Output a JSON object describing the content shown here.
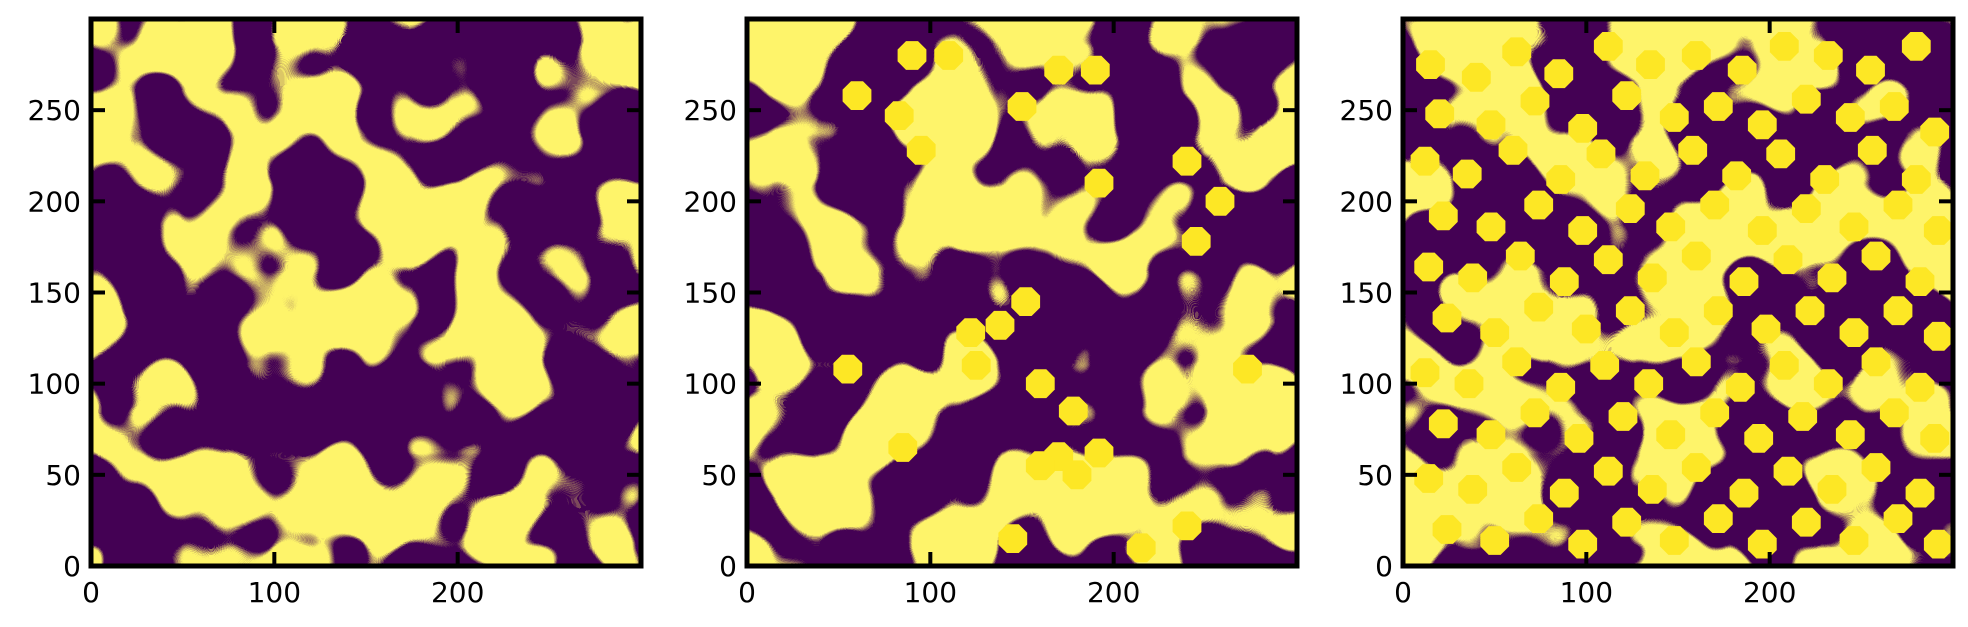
{
  "chart_data": [
    {
      "type": "heatmap",
      "xlim": [
        0,
        300
      ],
      "ylim": [
        0,
        300
      ],
      "x_ticks": [
        0,
        100,
        200
      ],
      "y_ticks": [
        0,
        50,
        100,
        150,
        200,
        250
      ],
      "grid": false,
      "colormap": [
        "#440154",
        "#FDE725"
      ],
      "circles": []
    },
    {
      "type": "heatmap",
      "xlim": [
        0,
        300
      ],
      "ylim": [
        0,
        300
      ],
      "x_ticks": [
        0,
        100,
        200
      ],
      "y_ticks": [
        0,
        50,
        100,
        150,
        200,
        250
      ],
      "grid": false,
      "colormap": [
        "#440154",
        "#FDE725"
      ],
      "circles": [
        [
          90,
          280
        ],
        [
          60,
          258
        ],
        [
          83,
          247
        ],
        [
          95,
          228
        ],
        [
          110,
          280
        ],
        [
          150,
          252
        ],
        [
          170,
          272
        ],
        [
          190,
          272
        ],
        [
          192,
          210
        ],
        [
          240,
          222
        ],
        [
          258,
          200
        ],
        [
          245,
          178
        ],
        [
          152,
          145
        ],
        [
          122,
          128
        ],
        [
          138,
          132
        ],
        [
          125,
          110
        ],
        [
          160,
          100
        ],
        [
          178,
          85
        ],
        [
          170,
          60
        ],
        [
          192,
          62
        ],
        [
          160,
          55
        ],
        [
          180,
          50
        ],
        [
          85,
          65
        ],
        [
          145,
          15
        ],
        [
          215,
          10
        ],
        [
          240,
          22
        ],
        [
          55,
          108
        ],
        [
          273,
          108
        ]
      ]
    },
    {
      "type": "heatmap",
      "xlim": [
        0,
        300
      ],
      "ylim": [
        0,
        300
      ],
      "x_ticks": [
        0,
        100,
        200
      ],
      "y_ticks": [
        0,
        50,
        100,
        150,
        200,
        250
      ],
      "grid": false,
      "colormap": [
        "#440154",
        "#FDE725"
      ],
      "circles": [
        [
          15,
          275
        ],
        [
          40,
          268
        ],
        [
          62,
          282
        ],
        [
          85,
          270
        ],
        [
          112,
          285
        ],
        [
          135,
          275
        ],
        [
          160,
          280
        ],
        [
          185,
          272
        ],
        [
          208,
          285
        ],
        [
          232,
          280
        ],
        [
          255,
          272
        ],
        [
          280,
          285
        ],
        [
          20,
          248
        ],
        [
          48,
          242
        ],
        [
          72,
          255
        ],
        [
          98,
          240
        ],
        [
          122,
          258
        ],
        [
          148,
          246
        ],
        [
          172,
          252
        ],
        [
          196,
          242
        ],
        [
          220,
          256
        ],
        [
          244,
          246
        ],
        [
          268,
          252
        ],
        [
          290,
          238
        ],
        [
          12,
          222
        ],
        [
          35,
          215
        ],
        [
          60,
          228
        ],
        [
          86,
          212
        ],
        [
          108,
          226
        ],
        [
          132,
          214
        ],
        [
          158,
          228
        ],
        [
          182,
          214
        ],
        [
          206,
          226
        ],
        [
          230,
          212
        ],
        [
          256,
          228
        ],
        [
          280,
          212
        ],
        [
          22,
          192
        ],
        [
          48,
          186
        ],
        [
          74,
          198
        ],
        [
          98,
          184
        ],
        [
          124,
          196
        ],
        [
          146,
          186
        ],
        [
          170,
          198
        ],
        [
          196,
          184
        ],
        [
          220,
          196
        ],
        [
          246,
          186
        ],
        [
          270,
          198
        ],
        [
          292,
          184
        ],
        [
          14,
          164
        ],
        [
          38,
          158
        ],
        [
          64,
          170
        ],
        [
          88,
          156
        ],
        [
          112,
          168
        ],
        [
          136,
          158
        ],
        [
          160,
          170
        ],
        [
          186,
          156
        ],
        [
          210,
          168
        ],
        [
          234,
          158
        ],
        [
          258,
          170
        ],
        [
          282,
          156
        ],
        [
          24,
          136
        ],
        [
          50,
          128
        ],
        [
          74,
          142
        ],
        [
          100,
          130
        ],
        [
          124,
          140
        ],
        [
          148,
          128
        ],
        [
          172,
          140
        ],
        [
          198,
          130
        ],
        [
          222,
          140
        ],
        [
          246,
          128
        ],
        [
          270,
          140
        ],
        [
          292,
          126
        ],
        [
          12,
          106
        ],
        [
          36,
          100
        ],
        [
          62,
          112
        ],
        [
          86,
          98
        ],
        [
          110,
          110
        ],
        [
          134,
          100
        ],
        [
          160,
          112
        ],
        [
          184,
          98
        ],
        [
          208,
          110
        ],
        [
          232,
          100
        ],
        [
          258,
          112
        ],
        [
          282,
          98
        ],
        [
          22,
          78
        ],
        [
          48,
          72
        ],
        [
          72,
          84
        ],
        [
          96,
          70
        ],
        [
          120,
          82
        ],
        [
          146,
          72
        ],
        [
          170,
          84
        ],
        [
          194,
          70
        ],
        [
          218,
          82
        ],
        [
          244,
          72
        ],
        [
          268,
          84
        ],
        [
          290,
          70
        ],
        [
          14,
          48
        ],
        [
          38,
          42
        ],
        [
          62,
          54
        ],
        [
          88,
          40
        ],
        [
          112,
          52
        ],
        [
          136,
          42
        ],
        [
          160,
          54
        ],
        [
          186,
          40
        ],
        [
          210,
          52
        ],
        [
          234,
          42
        ],
        [
          258,
          54
        ],
        [
          282,
          40
        ],
        [
          24,
          20
        ],
        [
          50,
          14
        ],
        [
          74,
          26
        ],
        [
          98,
          12
        ],
        [
          122,
          24
        ],
        [
          148,
          14
        ],
        [
          172,
          26
        ],
        [
          196,
          12
        ],
        [
          220,
          24
        ],
        [
          246,
          14
        ],
        [
          270,
          26
        ],
        [
          292,
          12
        ]
      ]
    }
  ]
}
